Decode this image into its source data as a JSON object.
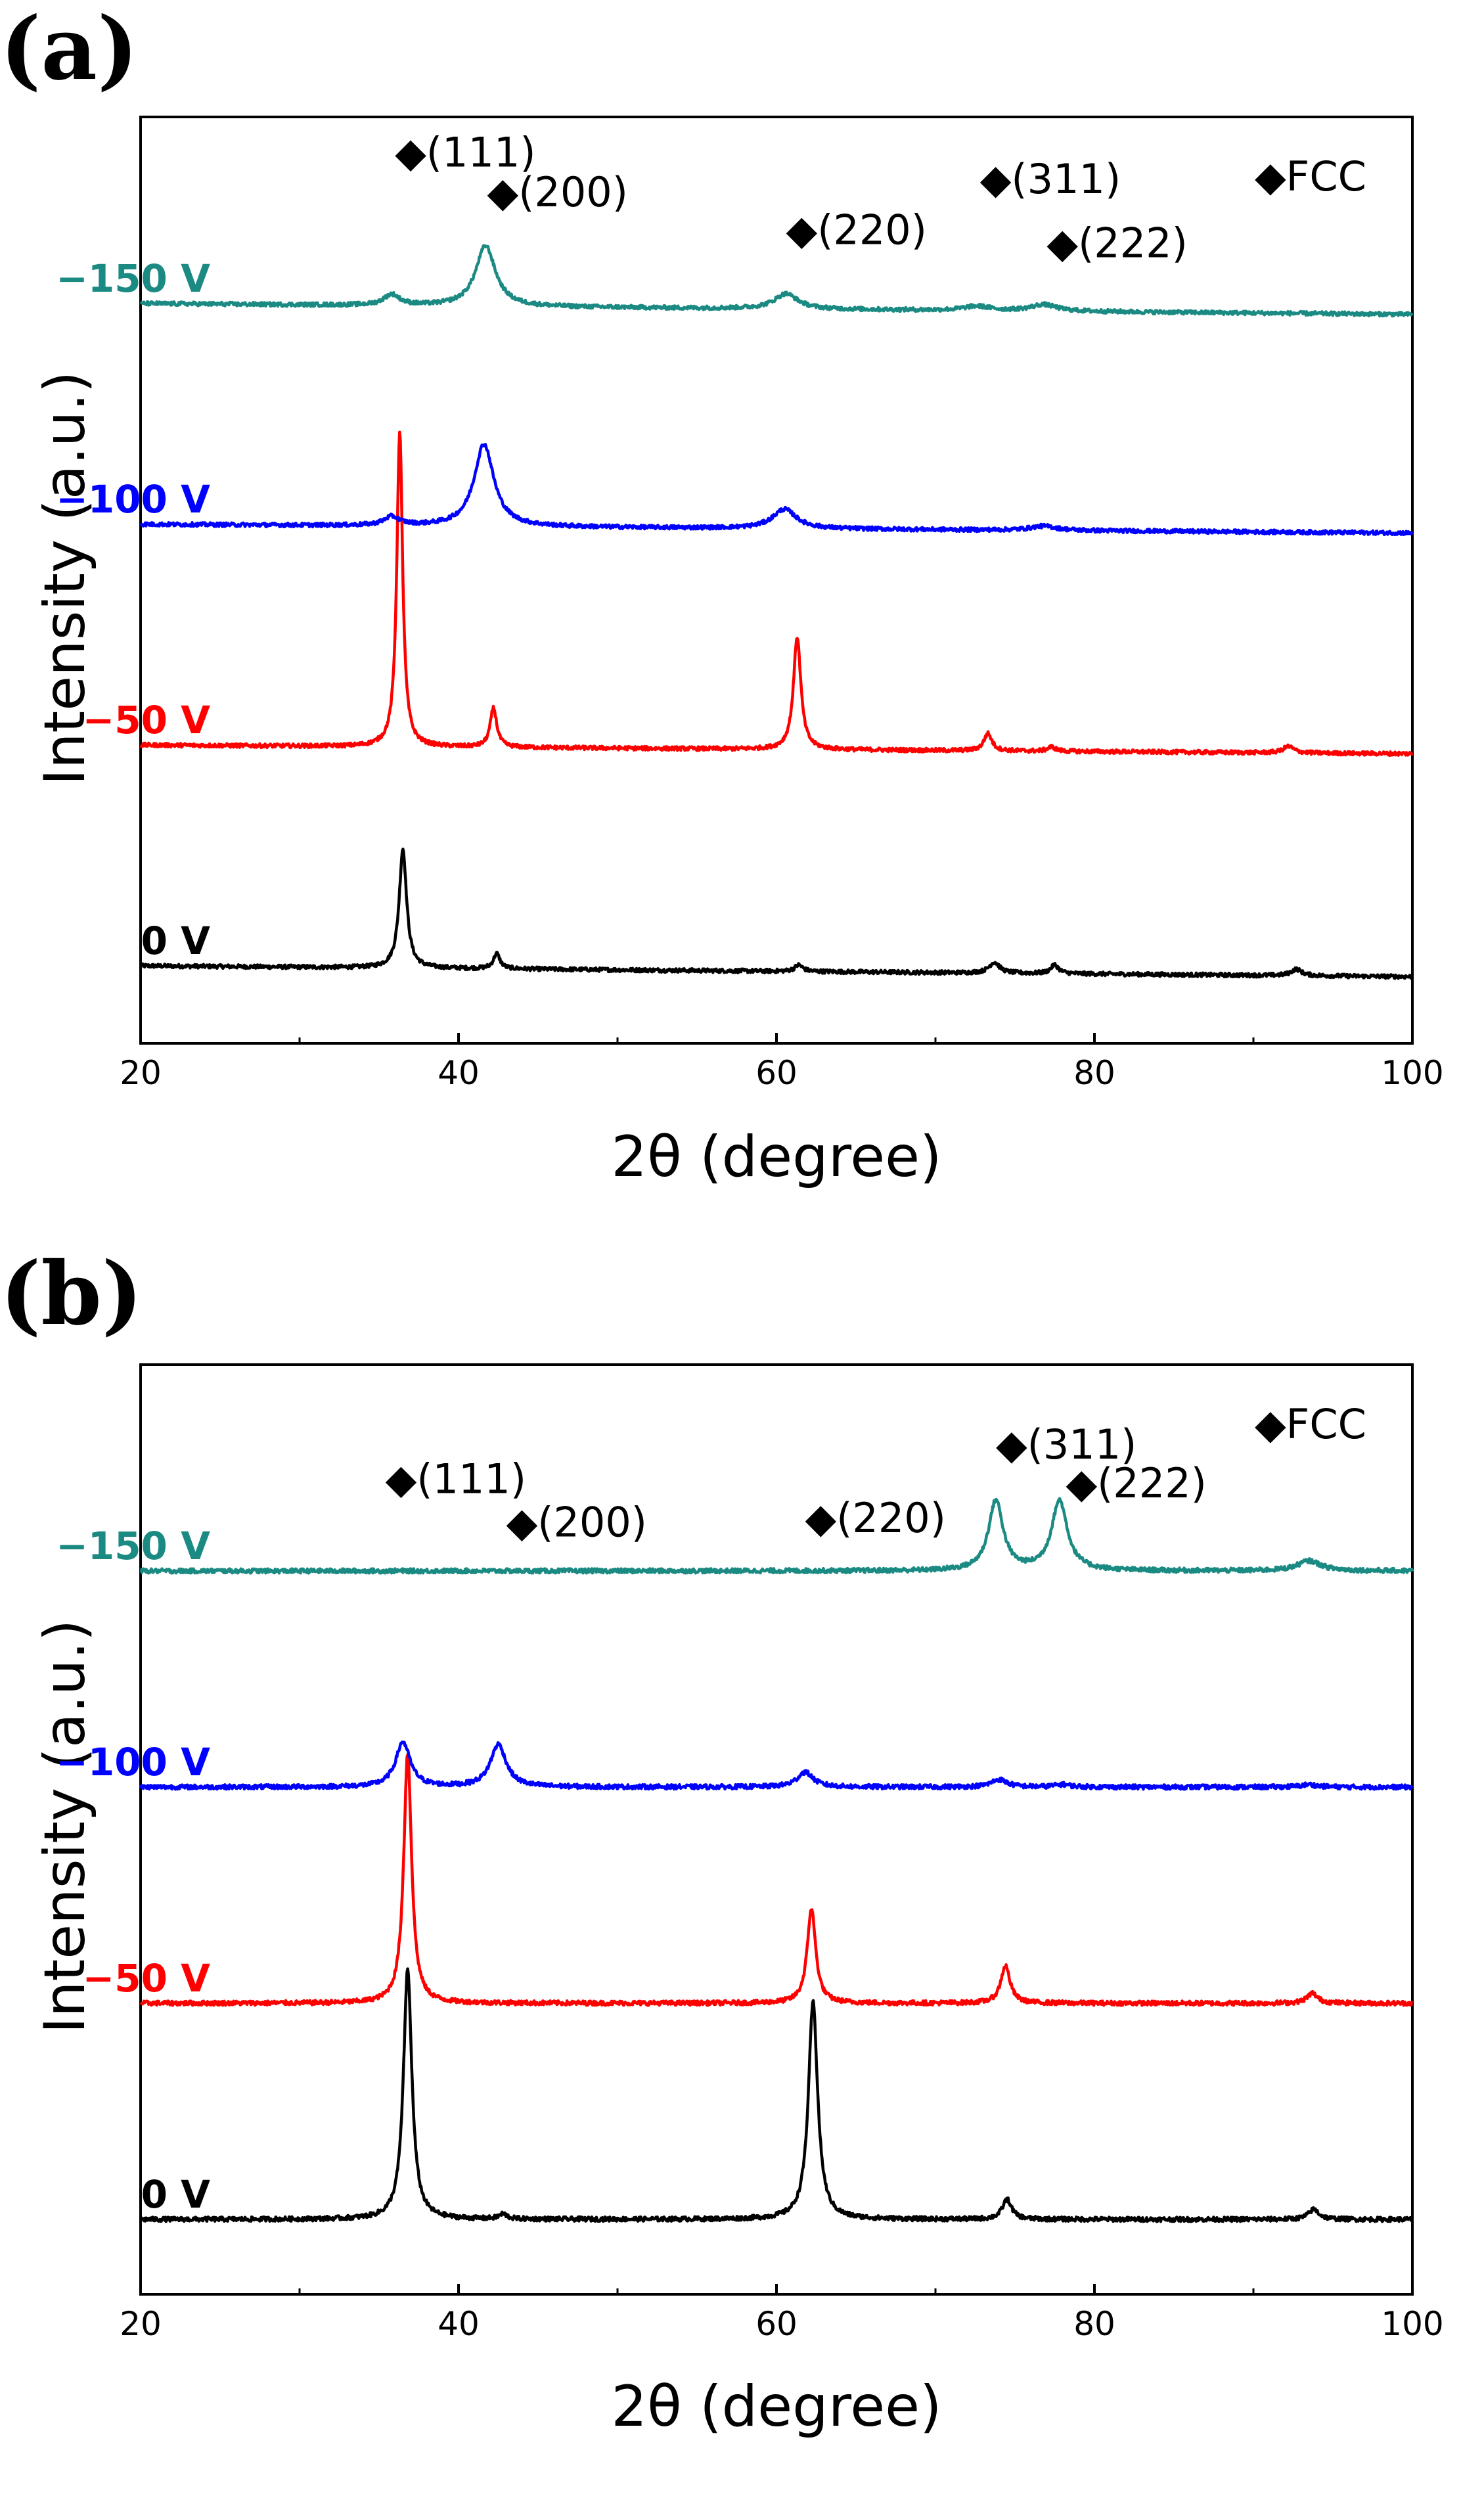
{
  "chart_data": [
    {
      "type": "line",
      "panel_label": "(a)",
      "xlabel": "2θ (degree)",
      "ylabel": "Intensity (a.u.)",
      "xlim": [
        20,
        100
      ],
      "xticks": [
        "20",
        "40",
        "60",
        "80",
        "100"
      ],
      "xtick_values": [
        20,
        40,
        60,
        80,
        100
      ],
      "legend": "◆FCC",
      "peak_labels": [
        {
          "text": "◆(111)",
          "x": 36.0,
          "level": 3.62
        },
        {
          "text": "◆(200)",
          "x": 41.8,
          "level": 3.44
        },
        {
          "text": "◆(220)",
          "x": 60.6,
          "level": 3.27
        },
        {
          "text": "◆(311)",
          "x": 72.8,
          "level": 3.5
        },
        {
          "text": "◆(222)",
          "x": 77.0,
          "level": 3.21
        }
      ],
      "series": [
        {
          "name": "0 V",
          "color": "#000000",
          "base": 0.0,
          "tilt": -0.05,
          "peaks": [
            [
              36.5,
              0.55,
              0.28
            ],
            [
              42.4,
              0.07,
              0.25
            ],
            [
              61.4,
              0.03,
              0.3
            ],
            [
              73.7,
              0.05,
              0.4
            ],
            [
              77.5,
              0.04,
              0.3
            ],
            [
              92.7,
              0.03,
              0.4
            ]
          ]
        },
        {
          "name": "−50 V",
          "color": "#ff0000",
          "base": 1.0,
          "tilt": -0.04,
          "peaks": [
            [
              36.3,
              1.45,
              0.22
            ],
            [
              42.2,
              0.18,
              0.25
            ],
            [
              61.3,
              0.52,
              0.28
            ],
            [
              73.3,
              0.08,
              0.3
            ],
            [
              77.3,
              0.02,
              0.3
            ],
            [
              92.2,
              0.03,
              0.4
            ]
          ]
        },
        {
          "name": "−100 V",
          "color": "#0000ff",
          "base": 2.0,
          "tilt": -0.04,
          "peaks": [
            [
              35.8,
              0.04,
              0.6
            ],
            [
              41.6,
              0.38,
              0.75
            ],
            [
              60.5,
              0.09,
              0.9
            ],
            [
              76.8,
              0.02,
              1.0
            ]
          ]
        },
        {
          "name": "−150 V",
          "color": "#1a8a82",
          "base": 3.0,
          "tilt": -0.05,
          "peaks": [
            [
              35.8,
              0.05,
              0.6
            ],
            [
              41.7,
              0.28,
              0.75
            ],
            [
              60.6,
              0.07,
              0.9
            ],
            [
              72.6,
              0.02,
              1.0
            ],
            [
              76.8,
              0.03,
              1.0
            ]
          ]
        }
      ]
    },
    {
      "type": "line",
      "panel_label": "(b)",
      "xlabel": "2θ (degree)",
      "ylabel": "Intensity (a.u.)",
      "xlim": [
        20,
        100
      ],
      "xticks": [
        "20",
        "40",
        "60",
        "80",
        "100"
      ],
      "xtick_values": [
        20,
        40,
        60,
        80,
        100
      ],
      "legend": "◆FCC",
      "peak_labels": [
        {
          "text": "◆(111)",
          "x": 35.4,
          "level": 3.36
        },
        {
          "text": "◆(200)",
          "x": 43.0,
          "level": 3.16
        },
        {
          "text": "◆(220)",
          "x": 61.8,
          "level": 3.18
        },
        {
          "text": "◆(311)",
          "x": 73.8,
          "level": 3.52
        },
        {
          "text": "◆(222)",
          "x": 78.2,
          "level": 3.34
        }
      ],
      "series": [
        {
          "name": "0 V",
          "color": "#000000",
          "base": 0.0,
          "tilt": 0.0,
          "peaks": [
            [
              36.8,
              1.0,
              0.32
            ],
            [
              42.8,
              0.02,
              0.3
            ],
            [
              62.3,
              0.87,
              0.35
            ],
            [
              74.5,
              0.08,
              0.35
            ],
            [
              93.8,
              0.04,
              0.4
            ]
          ]
        },
        {
          "name": "−50 V",
          "color": "#ff0000",
          "base": 1.0,
          "tilt": 0.0,
          "peaks": [
            [
              36.8,
              1.0,
              0.3
            ],
            [
              62.2,
              0.38,
              0.32
            ],
            [
              74.4,
              0.15,
              0.35
            ],
            [
              93.7,
              0.04,
              0.4
            ]
          ]
        },
        {
          "name": "−100 V",
          "color": "#0000ff",
          "base": 2.0,
          "tilt": 0.0,
          "peaks": [
            [
              36.5,
              0.18,
              0.55
            ],
            [
              42.5,
              0.17,
              0.6
            ],
            [
              61.8,
              0.06,
              0.6
            ],
            [
              74.0,
              0.03,
              0.6
            ],
            [
              78.0,
              0.01,
              0.6
            ],
            [
              93.5,
              0.01,
              0.6
            ]
          ]
        },
        {
          "name": "−150 V",
          "color": "#1a8a82",
          "base": 3.0,
          "tilt": 0.0,
          "peaks": [
            [
              73.8,
              0.28,
              0.55
            ],
            [
              77.8,
              0.28,
              0.6
            ],
            [
              93.5,
              0.04,
              0.9
            ]
          ]
        }
      ]
    }
  ]
}
